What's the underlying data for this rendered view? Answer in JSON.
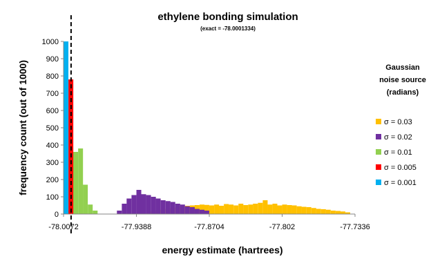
{
  "chart_data": {
    "type": "bar",
    "title": "ethylene bonding simulation",
    "subtitle": "(exact = -78.0001334)",
    "xlabel": "energy estimate (hartrees)",
    "ylabel": "frequency count (out of 1000)",
    "xlim": [
      -78.0072,
      -77.7336
    ],
    "ylim": [
      0,
      1000
    ],
    "x_ticks": [
      "-78.0072",
      "-77.9388",
      "-77.8704",
      "-77.802",
      "-77.7336"
    ],
    "y_ticks": [
      "0",
      "100",
      "200",
      "300",
      "400",
      "500",
      "600",
      "700",
      "800",
      "900",
      "1000"
    ],
    "bin_width": 0.00456,
    "exact_value": -78.0001334,
    "grid": false,
    "legend_title": [
      "Gaussian",
      "noise source",
      "(radians)"
    ],
    "legend_position": "right",
    "series": [
      {
        "name": "σ = 0.03",
        "color": "#FFC000",
        "bins": [
          [
            -77.9297,
            5
          ],
          [
            -77.9251,
            15
          ],
          [
            -77.9206,
            20
          ],
          [
            -77.916,
            25
          ],
          [
            -77.9114,
            30
          ],
          [
            -77.9069,
            35
          ],
          [
            -77.9023,
            40
          ],
          [
            -77.8978,
            45
          ],
          [
            -77.8932,
            48
          ],
          [
            -77.8886,
            50
          ],
          [
            -77.8841,
            52
          ],
          [
            -77.8795,
            55
          ],
          [
            -77.875,
            53
          ],
          [
            -77.8704,
            50
          ],
          [
            -77.8658,
            55
          ],
          [
            -77.8613,
            48
          ],
          [
            -77.8567,
            58
          ],
          [
            -77.8522,
            55
          ],
          [
            -77.8476,
            50
          ],
          [
            -77.843,
            60
          ],
          [
            -77.8385,
            52
          ],
          [
            -77.8339,
            55
          ],
          [
            -77.8294,
            60
          ],
          [
            -77.8248,
            65
          ],
          [
            -77.8202,
            80
          ],
          [
            -77.8157,
            55
          ],
          [
            -77.8111,
            60
          ],
          [
            -77.8066,
            50
          ],
          [
            -77.802,
            55
          ],
          [
            -77.7974,
            52
          ],
          [
            -77.7929,
            50
          ],
          [
            -77.7883,
            45
          ],
          [
            -77.7838,
            42
          ],
          [
            -77.7792,
            40
          ],
          [
            -77.7746,
            35
          ],
          [
            -77.7701,
            30
          ],
          [
            -77.7655,
            28
          ],
          [
            -77.761,
            25
          ],
          [
            -77.7564,
            20
          ],
          [
            -77.7518,
            18
          ],
          [
            -77.7473,
            15
          ],
          [
            -77.7427,
            10
          ]
        ]
      },
      {
        "name": "σ = 0.02",
        "color": "#7030A0",
        "bins": [
          [
            -77.9571,
            20
          ],
          [
            -77.9525,
            60
          ],
          [
            -77.948,
            90
          ],
          [
            -77.9434,
            110
          ],
          [
            -77.9388,
            140
          ],
          [
            -77.9343,
            115
          ],
          [
            -77.9297,
            110
          ],
          [
            -77.9251,
            100
          ],
          [
            -77.9206,
            90
          ],
          [
            -77.916,
            80
          ],
          [
            -77.9114,
            75
          ],
          [
            -77.9069,
            70
          ],
          [
            -77.9023,
            60
          ],
          [
            -77.8978,
            55
          ],
          [
            -77.8932,
            45
          ],
          [
            -77.8886,
            40
          ],
          [
            -77.8841,
            30
          ],
          [
            -77.8795,
            25
          ],
          [
            -77.875,
            20
          ]
        ]
      },
      {
        "name": "σ = 0.01",
        "color": "#92D050",
        "bins": [
          [
            -78.0026,
            20
          ],
          [
            -77.9981,
            360
          ],
          [
            -77.9935,
            380
          ],
          [
            -77.989,
            170
          ],
          [
            -77.9844,
            55
          ],
          [
            -77.9798,
            20
          ]
        ]
      },
      {
        "name": "σ = 0.005",
        "color": "#FF0000",
        "bins": [
          [
            -78.0072,
            220
          ],
          [
            -78.0026,
            780
          ]
        ]
      },
      {
        "name": "σ = 0.001",
        "color": "#00B0F0",
        "bins": [
          [
            -78.0072,
            1000
          ]
        ]
      }
    ]
  }
}
